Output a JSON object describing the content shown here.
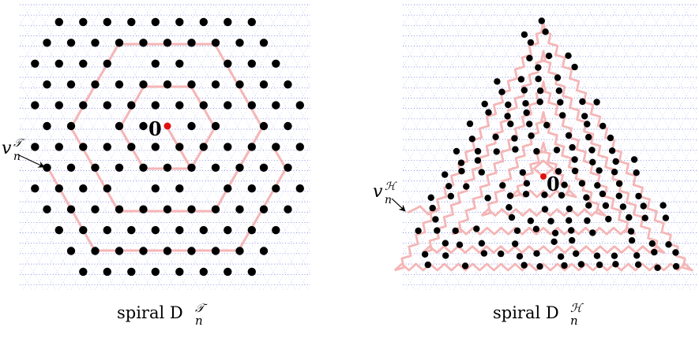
{
  "panels": [
    {
      "name": "triangular",
      "caption": "spiral D",
      "caption_sup": "𝒯",
      "caption_sub": "n",
      "vertex_label": "v",
      "vertex_sup": "𝒯",
      "vertex_sub": "n",
      "origin_label": "0"
    },
    {
      "name": "hexagonal",
      "caption": "spiral D",
      "caption_sup": "ℋ",
      "caption_sub": "n",
      "vertex_label": "v",
      "vertex_sup": "ℋ",
      "vertex_sub": "n",
      "origin_label": "0"
    }
  ],
  "colors": {
    "background": "#ffffff",
    "grid": "#3344cc",
    "path": "#f4b6b6",
    "site": "#000000",
    "origin": "#e01010"
  }
}
